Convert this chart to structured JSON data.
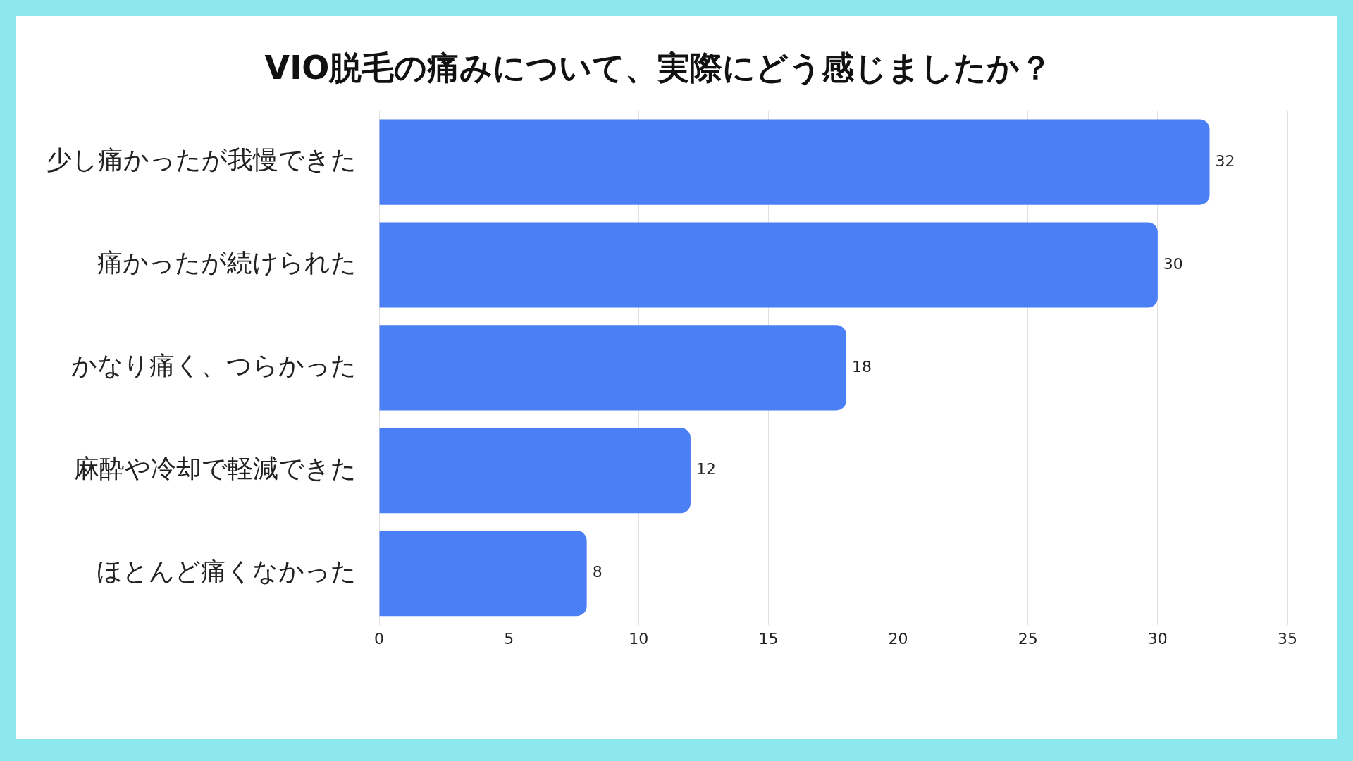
{
  "chart_data": {
    "type": "bar",
    "orientation": "horizontal",
    "title": "VIO脱毛の痛みについて、実際にどう感じましたか？",
    "categories": [
      "少し痛かったが我慢できた",
      "痛かったが続けられた",
      "かなり痛く、つらかった",
      "麻酔や冷却で軽減できた",
      "ほとんど痛くなかった"
    ],
    "values": [
      32,
      30,
      18,
      12,
      8
    ],
    "color": "#4a7ff5",
    "xlim": [
      0,
      35
    ],
    "xticks": [
      0,
      5,
      10,
      15,
      20,
      25,
      30,
      35
    ],
    "grid": "x",
    "data_labels": true
  }
}
